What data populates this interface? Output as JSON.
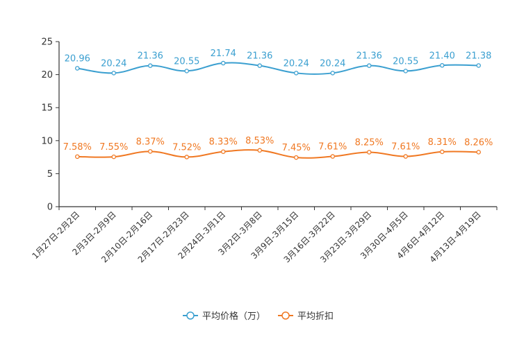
{
  "chart_data": {
    "type": "line",
    "title": "",
    "xlabel": "",
    "ylabel": "",
    "ylim": [
      0,
      25
    ],
    "yticks": [
      "0",
      "5",
      "10",
      "15",
      "20",
      "25"
    ],
    "categories": [
      "1月27日-2月2日",
      "2月3日-2月9日",
      "2月10日-2月16日",
      "2月17日-2月23日",
      "2月24日-3月1日",
      "3月2日-3月8日",
      "3月9日-3月15日",
      "3月16日-3月22日",
      "3月23日-3月29日",
      "3月30日-4月5日",
      "4月6日-4月12日",
      "4月13日-4月19日"
    ],
    "series": [
      {
        "name": "平均价格（万）",
        "color": "#3a9fd0",
        "values": [
          20.96,
          20.24,
          21.36,
          20.55,
          21.74,
          21.36,
          20.24,
          20.24,
          21.36,
          20.55,
          21.4,
          21.38
        ],
        "labels": [
          "20.96",
          "20.24",
          "21.36",
          "20.55",
          "21.74",
          "21.36",
          "20.24",
          "20.24",
          "21.36",
          "20.55",
          "21.40",
          "21.38"
        ]
      },
      {
        "name": "平均折扣",
        "color": "#f07822",
        "values": [
          7.58,
          7.55,
          8.37,
          7.52,
          8.33,
          8.53,
          7.45,
          7.61,
          8.25,
          7.61,
          8.31,
          8.26
        ],
        "labels": [
          "7.58%",
          "7.55%",
          "8.37%",
          "7.52%",
          "8.33%",
          "8.53%",
          "7.45%",
          "7.61%",
          "8.25%",
          "7.61%",
          "8.31%",
          "8.26%"
        ]
      }
    ],
    "legend": {
      "position": "bottom-center"
    }
  }
}
